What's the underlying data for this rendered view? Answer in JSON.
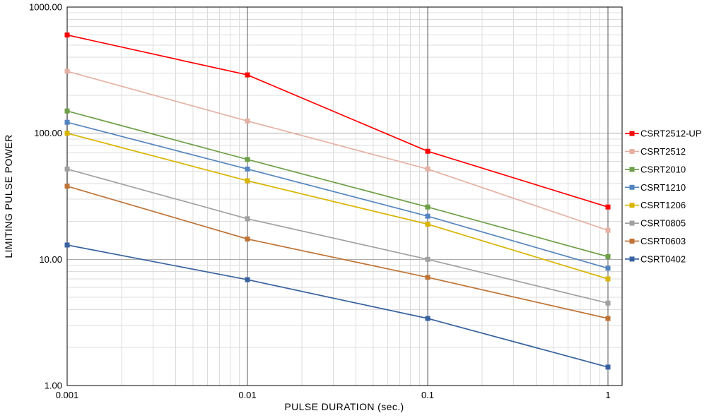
{
  "figure": {
    "background": "#FFFFFF"
  },
  "chart_data": {
    "type": "line",
    "title": "",
    "xlabel": "PULSE DURATION  (sec.)",
    "ylabel": "LIMITING  PULSE POWER",
    "xscale": "log",
    "yscale": "log",
    "xlim": [
      0.001,
      1
    ],
    "ylim": [
      1,
      1000
    ],
    "grid": true,
    "legend_position": "right",
    "x": [
      0.001,
      0.01,
      0.1,
      1
    ],
    "x_ticks": [
      {
        "value": 0.001,
        "label": "0.001"
      },
      {
        "value": 0.01,
        "label": "0.01"
      },
      {
        "value": 0.1,
        "label": "0.1"
      },
      {
        "value": 1,
        "label": "1"
      }
    ],
    "y_ticks": [
      {
        "value": 1,
        "label": "1.00"
      },
      {
        "value": 10,
        "label": "10.00"
      },
      {
        "value": 100,
        "label": "100.00"
      },
      {
        "value": 1000,
        "label": "1000.00"
      }
    ],
    "series": [
      {
        "name": "CSRT2512-UP",
        "color": "#FF0000",
        "values": [
          600,
          290,
          72,
          26
        ]
      },
      {
        "name": "CSRT2512",
        "color": "#E5B1A5",
        "values": [
          310,
          125,
          52,
          17
        ]
      },
      {
        "name": "CSRT2010",
        "color": "#6FA048",
        "values": [
          150,
          62,
          26,
          10.5
        ]
      },
      {
        "name": "CSRT1210",
        "color": "#5585BE",
        "values": [
          122,
          52,
          22,
          8.5
        ]
      },
      {
        "name": "CSRT1206",
        "color": "#D9B400",
        "values": [
          100,
          42,
          19,
          7
        ]
      },
      {
        "name": "CSRT0805",
        "color": "#A1A1A1",
        "values": [
          52,
          21,
          10,
          4.5
        ]
      },
      {
        "name": "CSRT0603",
        "color": "#BF7336",
        "values": [
          38,
          14.5,
          7.2,
          3.4
        ]
      },
      {
        "name": "CSRT0402",
        "color": "#38629F",
        "values": [
          13,
          6.9,
          3.4,
          1.4
        ]
      }
    ],
    "style": {
      "grid_minor_color": "#DCDCDC",
      "grid_major_h_color": "#ABABAB",
      "grid_major_v_color": "#595959",
      "plot_border_color": "#000000",
      "text_color": "#000000",
      "marker_size": 6,
      "line_width": 1.7
    }
  }
}
